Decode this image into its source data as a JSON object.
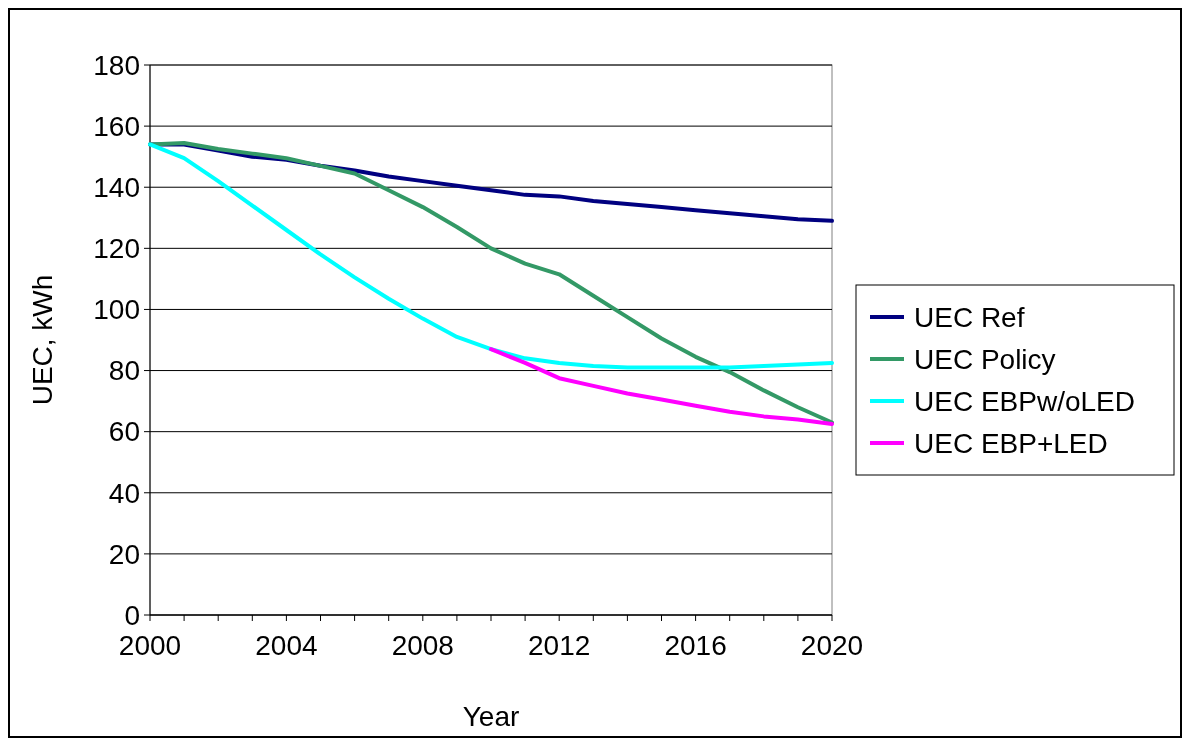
{
  "chart_data": {
    "type": "line",
    "xlabel": "Year",
    "ylabel": "UEC, kWh",
    "x": [
      2000,
      2001,
      2002,
      2003,
      2004,
      2005,
      2006,
      2007,
      2008,
      2009,
      2010,
      2011,
      2012,
      2013,
      2014,
      2015,
      2016,
      2017,
      2018,
      2019,
      2020
    ],
    "series": [
      {
        "name": "UEC Ref",
        "color": "#000080",
        "values": [
          154,
          154,
          152,
          150,
          149,
          147,
          145.5,
          143.5,
          142,
          140.5,
          139,
          137.5,
          137,
          135.5,
          134.5,
          133.5,
          132.5,
          131.5,
          130.5,
          129.5,
          129
        ]
      },
      {
        "name": "UEC Policy",
        "color": "#339966",
        "values": [
          154,
          154.5,
          152.5,
          151,
          149.5,
          147,
          144.5,
          139,
          133.5,
          127,
          120,
          115,
          111.5,
          104.5,
          97.5,
          90.5,
          84.5,
          79.5,
          73.5,
          68,
          63
        ]
      },
      {
        "name": "UEC EBPw/oLED",
        "color": "#00ffff",
        "values": [
          154,
          149.5,
          142,
          134,
          126,
          118,
          110.5,
          103.5,
          97,
          91,
          87,
          84,
          82.5,
          81.5,
          81,
          81,
          81,
          81,
          81.5,
          82,
          82.5
        ]
      },
      {
        "name": "UEC EBP+LED",
        "color": "#ff00ff",
        "values": [
          null,
          null,
          null,
          null,
          null,
          null,
          null,
          null,
          null,
          null,
          87,
          82.5,
          77.5,
          75,
          72.5,
          70.5,
          68.5,
          66.5,
          65,
          64,
          62.5
        ]
      }
    ],
    "xlim": [
      2000,
      2020
    ],
    "xticks": [
      2000,
      2004,
      2008,
      2012,
      2016,
      2020
    ],
    "ylim": [
      0,
      180
    ],
    "yticks": [
      0,
      20,
      40,
      60,
      80,
      100,
      120,
      140,
      160,
      180
    ],
    "grid": "y",
    "legend": "right",
    "marker": "none",
    "line_style": "solid"
  }
}
